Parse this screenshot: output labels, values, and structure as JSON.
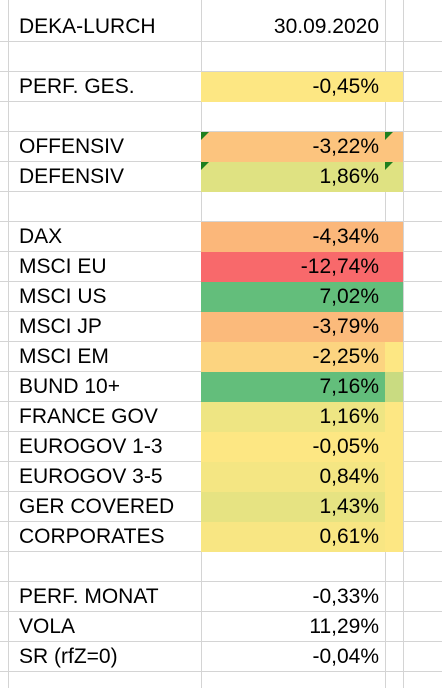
{
  "header": {
    "label": "DEKA-LURCH",
    "date": "30.09.2020"
  },
  "colors": {
    "yellow": "#FDE783",
    "light_orange": "#FCC47E",
    "orange": "#FBB77A",
    "red": "#F8696B",
    "green": "#63BE7B",
    "yellow_green": "#DFE282",
    "light_yellow_green": "#EEE583",
    "comment_marker": "#1E7F1E"
  },
  "perf_ges": {
    "label": "PERF. GES.",
    "value": "-0,45%"
  },
  "strategies": [
    {
      "label": "OFFENSIV",
      "value": "-3,22%"
    },
    {
      "label": "DEFENSIV",
      "value": "1,86%"
    }
  ],
  "assets": [
    {
      "label": "DAX",
      "value": "-4,34%"
    },
    {
      "label": "MSCI EU",
      "value": "-12,74%"
    },
    {
      "label": "MSCI US",
      "value": "7,02%"
    },
    {
      "label": "MSCI JP",
      "value": "-3,79%"
    },
    {
      "label": "MSCI EM",
      "value": "-2,25%"
    },
    {
      "label": "BUND 10+",
      "value": "7,16%"
    },
    {
      "label": "FRANCE GOV",
      "value": "1,16%"
    },
    {
      "label": "EUROGOV 1-3",
      "value": "-0,05%"
    },
    {
      "label": "EUROGOV 3-5",
      "value": "0,84%"
    },
    {
      "label": "GER COVERED",
      "value": "1,43%"
    },
    {
      "label": "CORPORATES",
      "value": "0,61%"
    }
  ],
  "stats": [
    {
      "label": "PERF. MONAT",
      "value": "-0,33%"
    },
    {
      "label": "VOLA",
      "value": "11,29%"
    },
    {
      "label": "SR (rfZ=0)",
      "value": "-0,04%"
    }
  ]
}
